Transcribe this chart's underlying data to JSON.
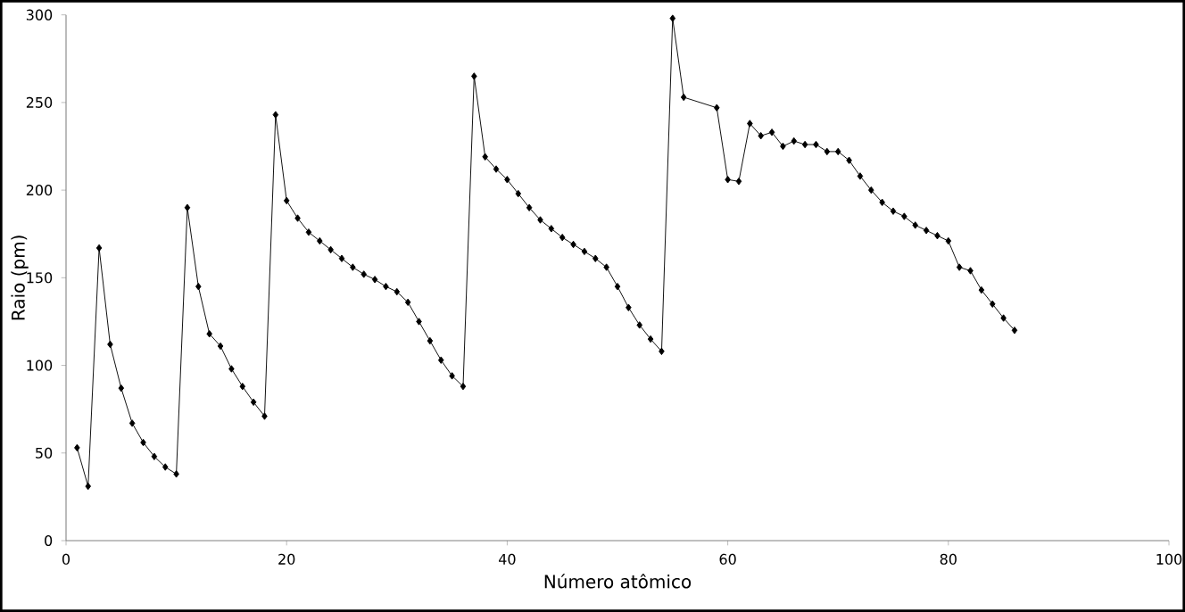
{
  "chart_data": {
    "type": "line",
    "xlabel": "Número atômico",
    "ylabel": "Raio (pm)",
    "x": [
      1,
      2,
      3,
      4,
      5,
      6,
      7,
      8,
      9,
      10,
      11,
      12,
      13,
      14,
      15,
      16,
      17,
      18,
      19,
      20,
      21,
      22,
      23,
      24,
      25,
      26,
      27,
      28,
      29,
      30,
      31,
      32,
      33,
      34,
      35,
      36,
      37,
      38,
      39,
      40,
      41,
      42,
      43,
      44,
      45,
      46,
      47,
      48,
      49,
      50,
      51,
      52,
      53,
      54,
      55,
      56,
      59,
      60,
      61,
      62,
      63,
      64,
      65,
      66,
      67,
      68,
      69,
      70,
      71,
      72,
      73,
      74,
      75,
      76,
      77,
      78,
      79,
      80,
      81,
      82,
      83,
      84,
      85,
      86
    ],
    "series": [
      {
        "color": "#000000",
        "values": [
          53,
          31,
          167,
          112,
          87,
          67,
          56,
          48,
          42,
          38,
          190,
          145,
          118,
          111,
          98,
          88,
          79,
          71,
          243,
          194,
          184,
          176,
          171,
          166,
          161,
          156,
          152,
          149,
          145,
          142,
          136,
          125,
          114,
          103,
          94,
          88,
          265,
          219,
          212,
          206,
          198,
          190,
          183,
          178,
          173,
          169,
          165,
          161,
          156,
          145,
          133,
          123,
          115,
          108,
          298,
          253,
          247,
          206,
          205,
          238,
          231,
          233,
          225,
          228,
          226,
          226,
          222,
          222,
          217,
          208,
          200,
          193,
          188,
          185,
          180,
          177,
          174,
          171,
          156,
          154,
          143,
          135,
          127,
          120
        ]
      }
    ],
    "xlim": [
      0,
      100
    ],
    "ylim": [
      0,
      300
    ],
    "xticks": [
      0,
      20,
      40,
      60,
      80,
      100
    ],
    "yticks": [
      0,
      50,
      100,
      150,
      200,
      250,
      300
    ],
    "grid": false,
    "marker": "diamond",
    "line_style": "solid"
  }
}
